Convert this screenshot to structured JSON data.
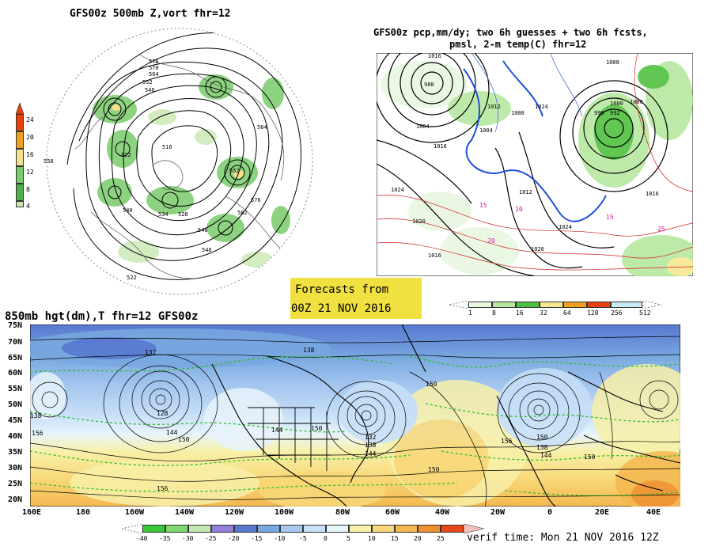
{
  "panel_top_left": {
    "title": "GFS00z   500mb Z,vort    fhr=12",
    "colorbar": {
      "labels": [
        "24",
        "20",
        "16",
        "12",
        "8",
        "4"
      ],
      "colors": [
        "#e8400a",
        "#f0a020",
        "#f5e08a",
        "#7acb6a",
        "#4db04a",
        "#c8e8b0"
      ]
    },
    "contour_labels": [
      "576",
      "570",
      "564",
      "552",
      "546",
      "540",
      "534",
      "528",
      "522",
      "516",
      "558",
      "564",
      "576",
      "582",
      "552",
      "546",
      "540",
      "522"
    ]
  },
  "panel_top_right": {
    "title_line1": "GFS00z pcp,mm/dy; two 6h guesses + two 6h fcsts,",
    "title_line2": "pmsl, 2-m temp(C)  fhr=12",
    "contour_labels": [
      "1016",
      "1004",
      "988",
      "1012",
      "1008",
      "992",
      "1000",
      "1004",
      "1016",
      "1024",
      "1020",
      "1016",
      "1024",
      "1016",
      "1020",
      "1012",
      "1024",
      "1008",
      "1000",
      "996",
      "15",
      "10",
      "15",
      "20",
      "25"
    ],
    "colorbar": {
      "labels": [
        "1",
        "8",
        "16",
        "32",
        "64",
        "128",
        "256",
        "512"
      ],
      "colors": [
        "#e8f8e0",
        "#b8e8a0",
        "#50c040",
        "#f8e890",
        "#f0a020",
        "#e84010",
        "#c8ecf8"
      ]
    }
  },
  "banner": {
    "line1": "Forecasts from",
    "line2": "00Z 21 NOV 2016",
    "bg": "#f0e040"
  },
  "panel_bottom": {
    "title": "850mb hgt(dm),T  fhr=12 GFS00z",
    "lat_labels": [
      "75N",
      "70N",
      "65N",
      "60N",
      "55N",
      "50N",
      "45N",
      "40N",
      "35N",
      "30N",
      "25N",
      "20N"
    ],
    "lon_labels": [
      "160E",
      "180",
      "160W",
      "140W",
      "120W",
      "100W",
      "80W",
      "60W",
      "40W",
      "20W",
      "0",
      "20E",
      "40E"
    ],
    "contour_labels": [
      "132",
      "138",
      "150",
      "128",
      "144",
      "150",
      "156",
      "144",
      "150",
      "132",
      "138",
      "144",
      "150",
      "156",
      "138",
      "144",
      "150",
      "138",
      "150",
      "156"
    ],
    "colorbar": {
      "labels": [
        "-40",
        "-35",
        "-30",
        "-25",
        "-20",
        "-15",
        "-10",
        "-5",
        "0",
        "5",
        "10",
        "15",
        "20",
        "25"
      ],
      "colors": [
        "#38c838",
        "#80d870",
        "#c0e8b0",
        "#9080d8",
        "#5878d0",
        "#78a8e0",
        "#a8c8f0",
        "#c8e0f8",
        "#e8f4fc",
        "#f8f0a8",
        "#f8d878",
        "#f4b850",
        "#f09030",
        "#e84818",
        "#f4c0b8"
      ]
    },
    "verif_text": "verif time: Mon 21 NOV 2016 12Z"
  }
}
